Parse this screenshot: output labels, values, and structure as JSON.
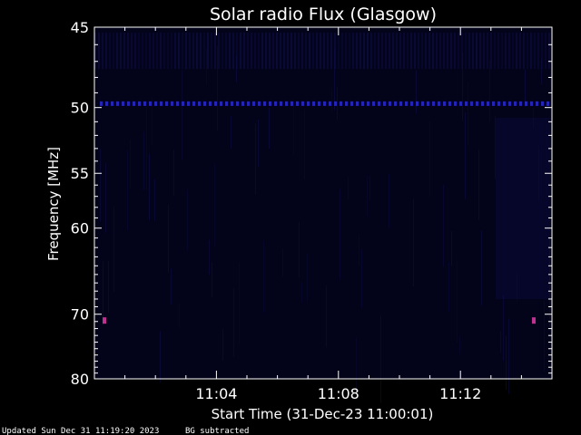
{
  "chart_data": {
    "type": "heatmap",
    "title": "Solar radio Flux (Glasgow)",
    "xlabel": "Start Time (31-Dec-23 11:00:01)",
    "ylabel": "Frequency [MHz]",
    "x_ticks": [
      "11:04",
      "11:08",
      "11:12"
    ],
    "x_tick_minutes": [
      4,
      8,
      12
    ],
    "xlim_minutes": [
      0,
      15
    ],
    "y_ticks": [
      45,
      50,
      55,
      60,
      70,
      80
    ],
    "ylim": [
      45,
      80
    ],
    "y_scale": "reciprocal",
    "features": {
      "bright_band_mhz": 49.7,
      "edge_markers_mhz": 70.8
    },
    "colors": {
      "background": "#000000",
      "plot_bg": "#03031a",
      "noise": "#0e0e4a",
      "band": "#2a2ad6",
      "marker": "#c03090",
      "axis": "#ffffff"
    }
  },
  "footer": {
    "updated": "Updated Sun Dec 31 11:19:20 2023",
    "bg_note": "BG subtracted"
  }
}
